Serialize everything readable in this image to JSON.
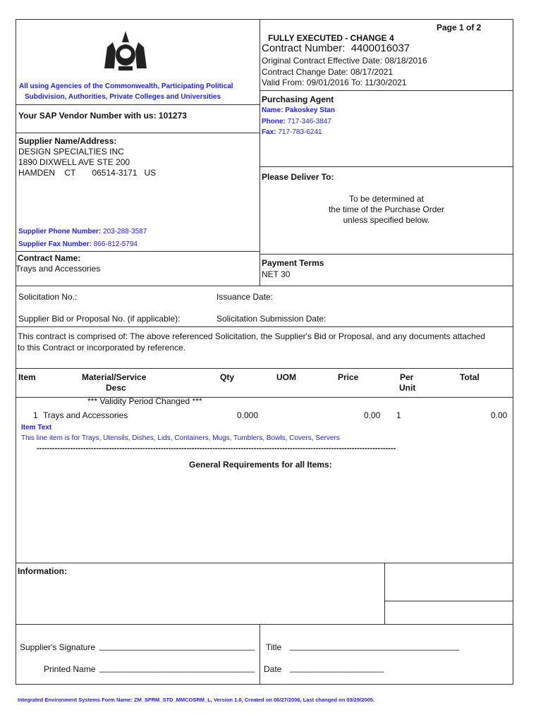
{
  "header": {
    "page": "Page 1 of 2",
    "status": "FULLY EXECUTED - CHANGE 4",
    "contract_number_label": "Contract Number:",
    "contract_number": "4400016037",
    "original_effective": "Original Contract Effective Date: 08/18/2016",
    "change_date": "Contract Change Date: 08/17/2021",
    "valid": "Valid From: 09/01/2016 To: 11/30/2021"
  },
  "agencies": [
    "All using Agencies of the Commonwealth, Participating Political",
    "Subdivision, Authorities, Private Colleges and Universities"
  ],
  "vendor": "Your SAP Vendor Number with us: 101273",
  "supplier": {
    "label": "Supplier Name/Address:",
    "lines": [
      "DESIGN SPECIALTIES INC",
      "1890 DIXWELL AVE STE 200",
      "HAMDEN    CT       06514-3171   US"
    ],
    "phone_label": "Supplier Phone Number:",
    "phone": "203-288-3587",
    "fax_label": "Supplier Fax Number:",
    "fax": "866-812-5794"
  },
  "agent": {
    "label": "Purchasing Agent",
    "name": "Name: Pakoskey Stan",
    "phone_label": "Phone:",
    "phone": "717-346-3847",
    "fax_label": "Fax:",
    "fax": "717-783-6241"
  },
  "deliver": {
    "label": "Please Deliver To:",
    "lines": [
      "To be determined at",
      "the time of the Purchase Order",
      "unless specified below."
    ]
  },
  "contract_name": {
    "label": "Contract Name:",
    "value": "Trays and Accessories"
  },
  "payment": {
    "label": "Payment Terms",
    "value": "NET 30"
  },
  "solicitation": {
    "no": "Solicitation No.:",
    "issuance": "Issuance Date:",
    "bid": "Supplier Bid or Proposal No. (if applicable):",
    "submission": "Solicitation Submission Date:"
  },
  "comprised": [
    "This contract is comprised of:  The above referenced Solicitation, the Supplier's Bid or Proposal, and any documents attached",
    "to this Contract or incorporated by reference."
  ],
  "table": {
    "headers": {
      "item": "Item",
      "desc1": "Material/Service",
      "desc2": "Desc",
      "qty": "Qty",
      "uom": "UOM",
      "price": "Price",
      "per1": "Per",
      "per2": "Unit",
      "total": "Total"
    },
    "notice": "*** Validity Period Changed ***",
    "rows": [
      {
        "item": "1",
        "desc": "Trays and Accessories",
        "qty": "0.000",
        "uom": "",
        "price": "0.00",
        "per": "1",
        "total": "0.00"
      }
    ],
    "item_text_label": "Item Text",
    "item_text": "This line item is for Trays, Utensils, Dishes, Lids, Containers, Mugs, Tumblers, Bowls, Covers, Servers",
    "separator": "-------------------------------------------------------------------------------------------------------------------------------------------",
    "general": "General Requirements for all Items:"
  },
  "information": "Information:",
  "signature": {
    "sig": "Supplier's  Signature",
    "sig_line": "_________________________________",
    "printed": "Printed Name",
    "printed_line": "_________________________________",
    "title": "Title",
    "title_line": "____________________________________",
    "date": "Date",
    "date_line": "____________________"
  },
  "footer": "Integrated Environment Systems Form Name: ZM_SFRM_STD_MMCOSRM_L, Version 1.0, Created on 06/27/2006, Last changed on 03/29/2005."
}
